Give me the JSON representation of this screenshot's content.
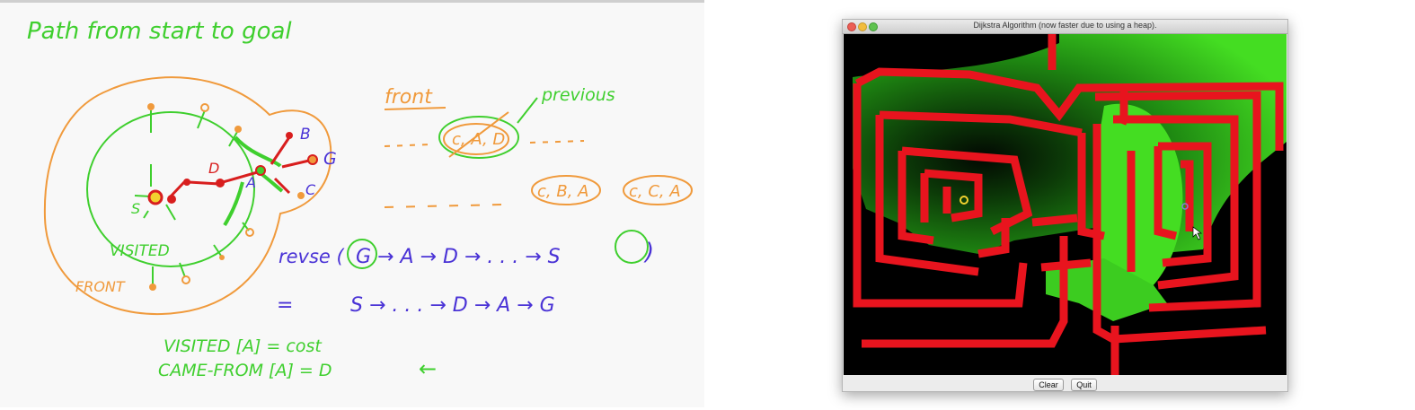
{
  "whiteboard": {
    "heading": "Path from start to goal",
    "front_label": "front",
    "previous_label": "previous",
    "front_entry": "c, A, D",
    "front_entry_2": "c, B, A",
    "front_entry_3": "c, C, A",
    "node_b": "B",
    "node_g": "G",
    "node_d": "D",
    "node_a": "A",
    "node_c": "C",
    "node_s": "S",
    "visited_region": "VISITED",
    "front_region": "FRONT",
    "rev_prefix": "revse (",
    "rev_chain": "G → A → D → . . . → S",
    "rev_close": ")",
    "eq_sign": "=",
    "forward_chain": "S → . . . → D → A → G",
    "visited_assign": "VISITED [A] = cost",
    "camefrom_assign": "CAME-FROM [A] = D",
    "arrow_mark": "←"
  },
  "window": {
    "title": "Dijkstra Algorithm (now faster due to using a heap).",
    "clear_label": "Clear",
    "quit_label": "Quit"
  },
  "colors": {
    "ink_green": "#3fcf2e",
    "ink_orange": "#f09a3c",
    "ink_red": "#d81e1e",
    "ink_blue": "#4a33d6",
    "maze_wall": "#e8141e",
    "maze_visited": "#44dd22",
    "maze_free": "#000000"
  }
}
